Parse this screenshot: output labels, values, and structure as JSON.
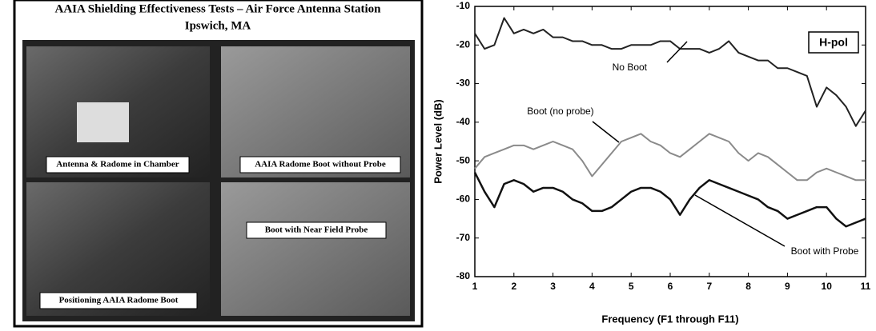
{
  "panel": {
    "title": "AAIA Shielding Effectiveness Tests – Air Force Antenna Station",
    "subtitle": "Ipswich, MA",
    "photos": [
      "Antenna & Radome in Chamber",
      "AAIA Radome Boot without Probe",
      "Positioning AAIA Radome Boot",
      "Boot with Near Field Probe"
    ]
  },
  "chart_data": {
    "type": "line",
    "annotation": "H-pol",
    "xlabel": "Frequency (F1 through F11)",
    "ylabel": "Power Level (dB)",
    "x": [
      1,
      1.25,
      1.5,
      1.75,
      2,
      2.25,
      2.5,
      2.75,
      3,
      3.25,
      3.5,
      3.75,
      4,
      4.25,
      4.5,
      4.75,
      5,
      5.25,
      5.5,
      5.75,
      6,
      6.25,
      6.5,
      6.75,
      7,
      7.25,
      7.5,
      7.75,
      8,
      8.25,
      8.5,
      8.75,
      9,
      9.25,
      9.5,
      9.75,
      10,
      10.25,
      10.5,
      10.75,
      11
    ],
    "series": [
      {
        "name": "No Boot",
        "color": "#222222",
        "values": [
          -17,
          -21,
          -20,
          -13,
          -17,
          -16,
          -17,
          -16,
          -18,
          -18,
          -19,
          -19,
          -20,
          -20,
          -21,
          -21,
          -20,
          -20,
          -20,
          -19,
          -19,
          -21,
          -21,
          -21,
          -22,
          -21,
          -19,
          -22,
          -23,
          -24,
          -24,
          -26,
          -26,
          -27,
          -28,
          -36,
          -31,
          -33,
          -36,
          -41,
          -37
        ]
      },
      {
        "name": "Boot (no probe)",
        "color": "#8a8a8a",
        "values": [
          -52,
          -49,
          -48,
          -47,
          -46,
          -46,
          -47,
          -46,
          -45,
          -46,
          -47,
          -50,
          -54,
          -51,
          -48,
          -45,
          -44,
          -43,
          -45,
          -46,
          -48,
          -49,
          -47,
          -45,
          -43,
          -44,
          -45,
          -48,
          -50,
          -48,
          -49,
          -51,
          -53,
          -55,
          -55,
          -53,
          -52,
          -53,
          -54,
          -55,
          -55
        ]
      },
      {
        "name": "Boot with Probe",
        "color": "#111111",
        "values": [
          -53,
          -58,
          -62,
          -56,
          -55,
          -56,
          -58,
          -57,
          -57,
          -58,
          -60,
          -61,
          -63,
          -63,
          -62,
          -60,
          -58,
          -57,
          -57,
          -58,
          -60,
          -64,
          -60,
          -57,
          -55,
          -56,
          -57,
          -58,
          -59,
          -60,
          -62,
          -63,
          -65,
          -64,
          -63,
          -62,
          -62,
          -65,
          -67,
          -66,
          -65
        ]
      }
    ],
    "xlim": [
      1,
      11
    ],
    "ylim": [
      -80,
      -10
    ],
    "xticks": [
      1,
      2,
      3,
      4,
      5,
      6,
      7,
      8,
      9,
      10,
      11
    ],
    "yticks": [
      -80,
      -70,
      -60,
      -50,
      -40,
      -30,
      -20,
      -10
    ],
    "grid": false
  }
}
